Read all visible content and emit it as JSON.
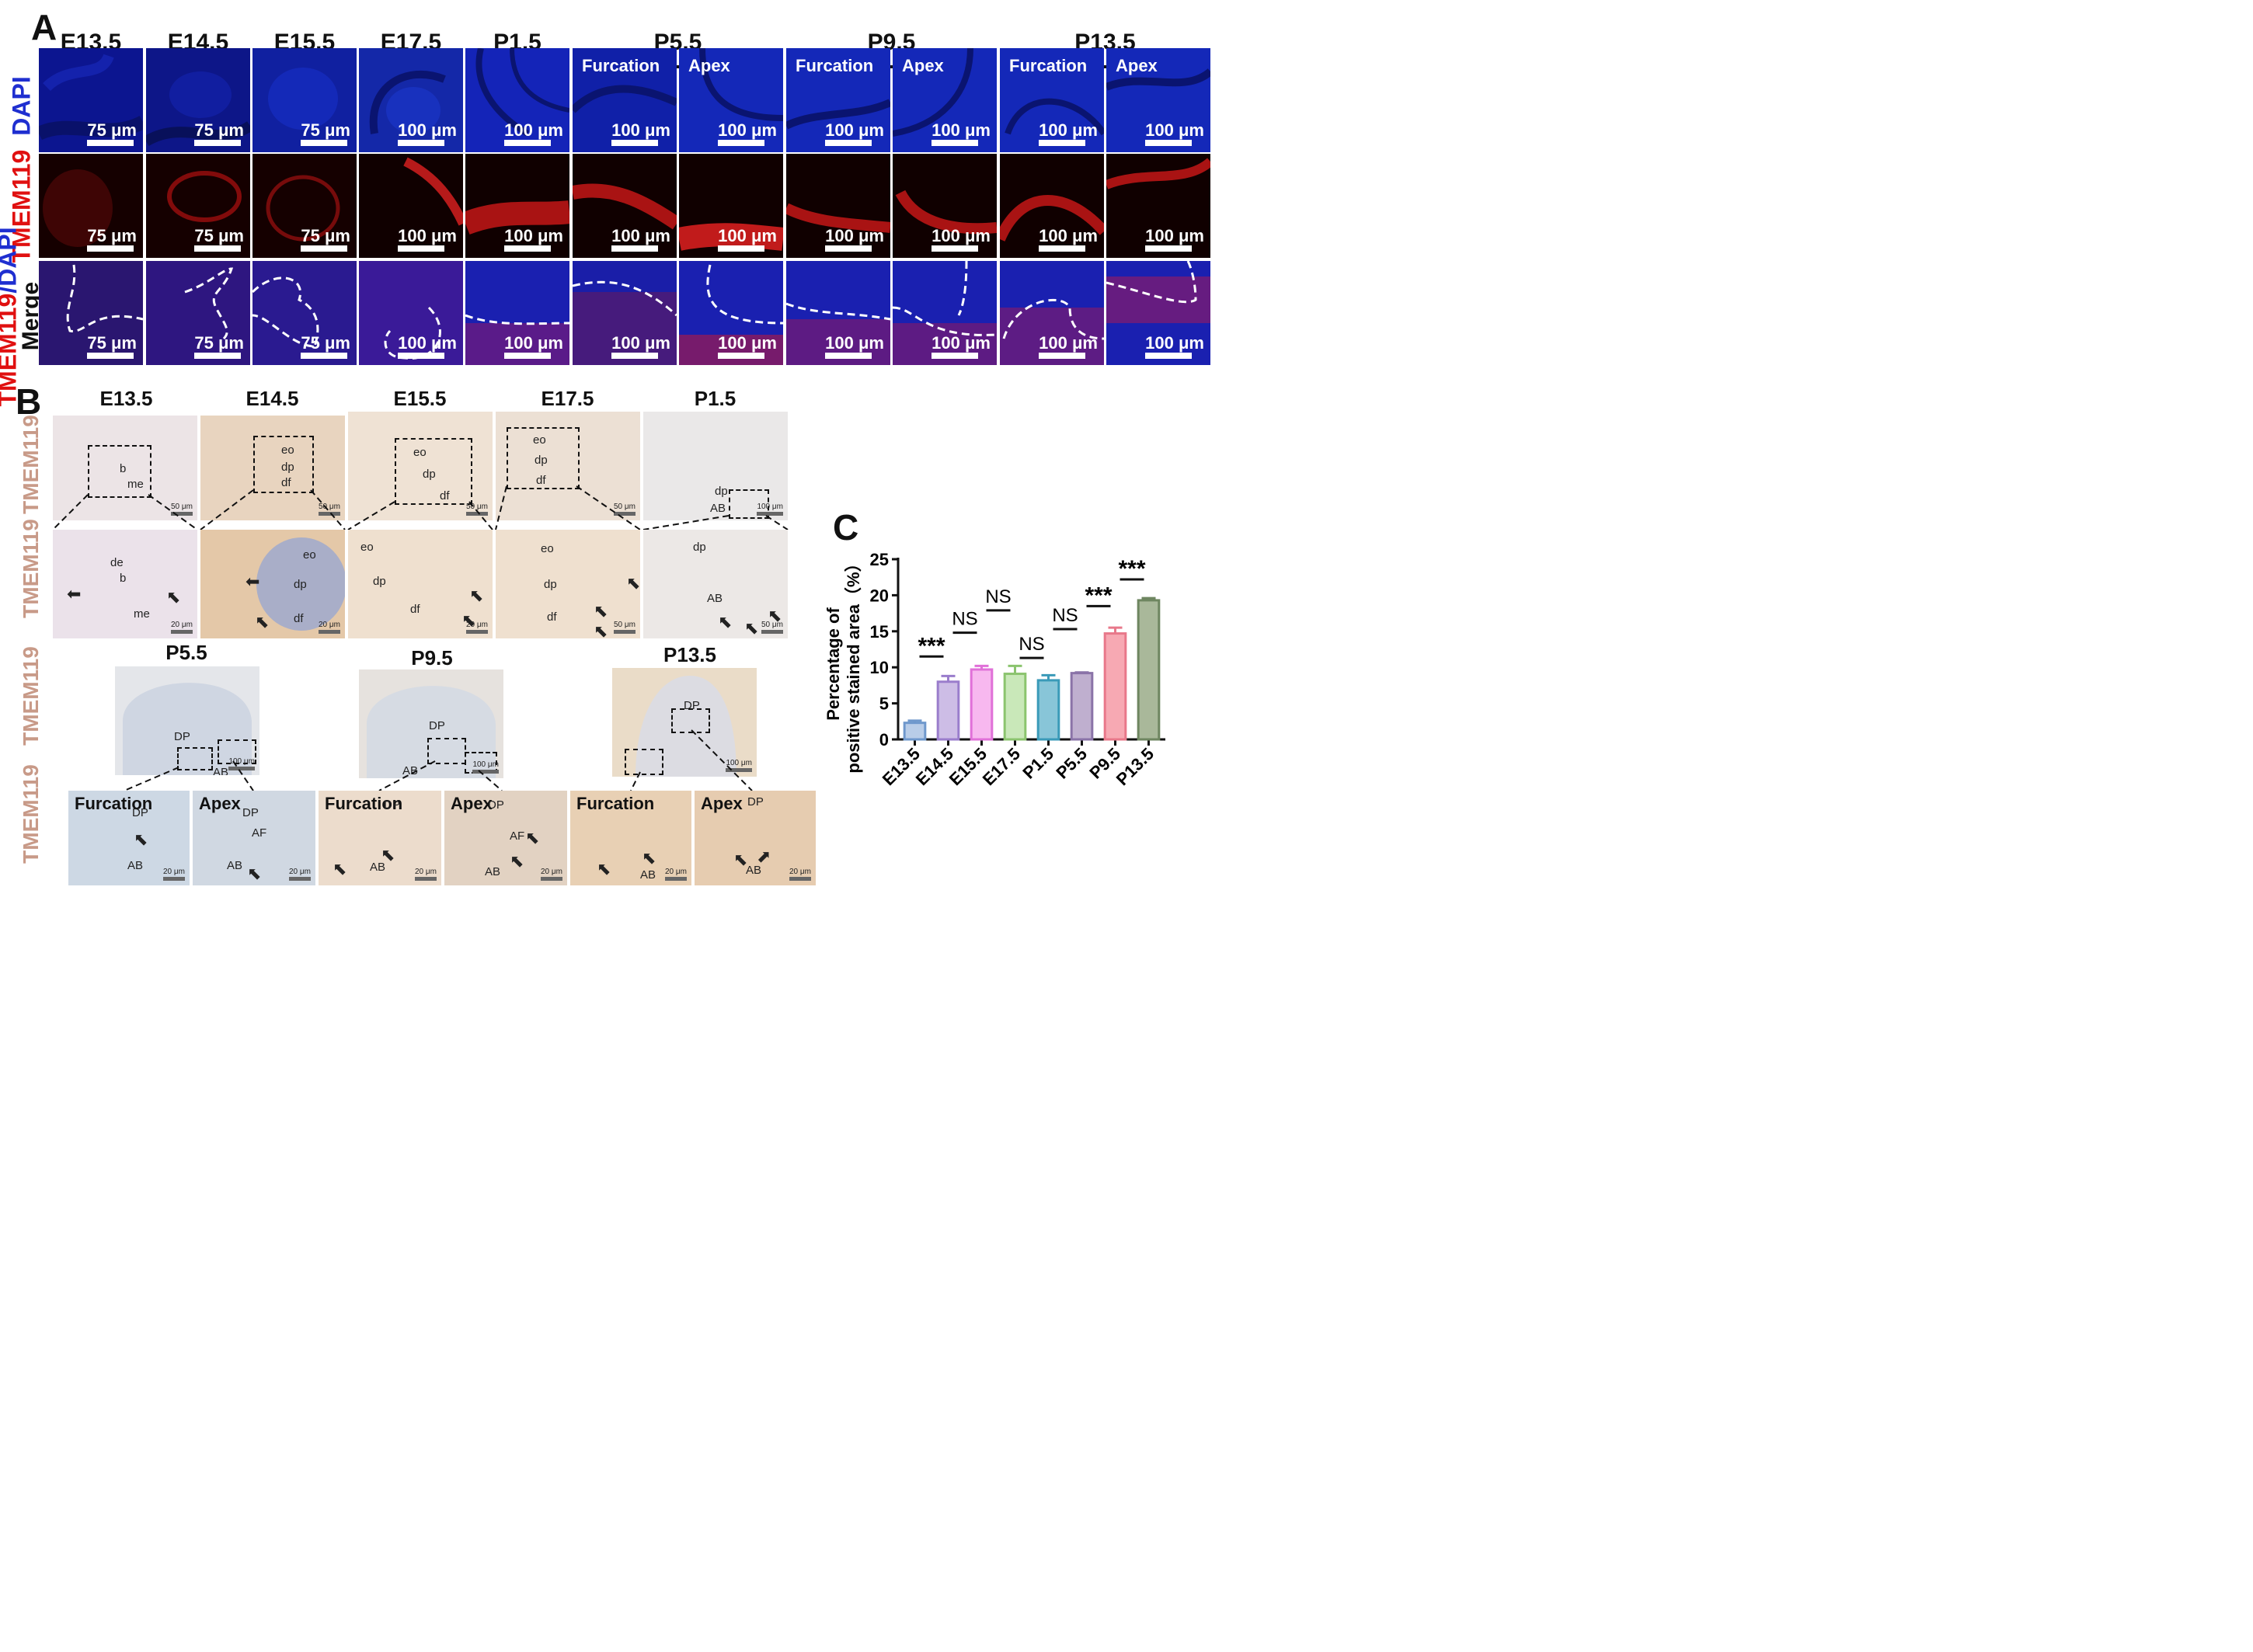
{
  "panel_a": {
    "label": "A",
    "stages": [
      "E13.5",
      "E14.5",
      "E15.5",
      "E17.5",
      "P1.5",
      "P5.5",
      "P9.5",
      "P13.5"
    ],
    "sub_labels": [
      "Furcation",
      "Apex"
    ],
    "rows": {
      "dapi": "DAPI",
      "tmem": "TMEM119",
      "merge_a": "TMEM119",
      "merge_b": "/DAPI",
      "merge_c": "Merge"
    },
    "scalebars": [
      "75 μm",
      "75 μm",
      "75 μm",
      "100 μm",
      "100 μm",
      "100 μm",
      "100 μm",
      "100 μm",
      "100 μm",
      "100 μm",
      "100 μm"
    ]
  },
  "panel_b": {
    "label": "B",
    "stages_top": [
      "E13.5",
      "E14.5",
      "E15.5",
      "E17.5",
      "P1.5"
    ],
    "stages_bottom": [
      "P5.5",
      "P9.5",
      "P13.5"
    ],
    "row_label": "TMEM119",
    "sub_labels": [
      "Furcation",
      "Apex"
    ],
    "annotations": {
      "b": "b",
      "me": "me",
      "de": "de",
      "eo": "eo",
      "dp": "dp",
      "df": "df",
      "AB": "AB",
      "DP": "DP",
      "AF": "AF"
    },
    "scalebars": [
      "50 μm",
      "50 μm",
      "50 μm",
      "50 μm",
      "100 μm",
      "20 μm",
      "20 μm",
      "20 μm",
      "50 μm",
      "50 μm",
      "100 μm",
      "100 μm",
      "100 μm",
      "20 μm",
      "20 μm",
      "20 μm",
      "20 μm",
      "20 μm",
      "20 μm"
    ]
  },
  "panel_c": {
    "label": "C"
  },
  "chart_data": {
    "type": "bar",
    "title": "",
    "xlabel": "",
    "ylabel": "Percentage of positive stained area（%）",
    "ylabel_line1": "Percentage of",
    "ylabel_line2": "positive stained area（%）",
    "ylim": [
      0,
      25
    ],
    "yticks": [
      0,
      5,
      10,
      15,
      20,
      25
    ],
    "categories": [
      "E13.5",
      "E14.5",
      "E15.5",
      "E17.5",
      "P1.5",
      "P5.5",
      "P9.5",
      "P13.5"
    ],
    "values": [
      2.3,
      8.0,
      9.7,
      9.1,
      8.2,
      9.2,
      14.7,
      19.3
    ],
    "errors": [
      0.3,
      0.8,
      0.5,
      1.1,
      0.7,
      0.1,
      0.8,
      0.3
    ],
    "bar_fill": [
      "#b9cde8",
      "#cdbde6",
      "#f7b8ef",
      "#c9e8b9",
      "#88c5d8",
      "#bfafcf",
      "#f7a9b3",
      "#a9b89a"
    ],
    "bar_edge": [
      "#6f98cc",
      "#9a7dcc",
      "#e070d8",
      "#8bc46e",
      "#3a9ab8",
      "#8a73a8",
      "#e8788a",
      "#6e8660"
    ],
    "significance": [
      {
        "from": 0,
        "to": 1,
        "label": "***",
        "y": 11.5
      },
      {
        "from": 1,
        "to": 2,
        "label": "NS",
        "y": 14.8
      },
      {
        "from": 2,
        "to": 3,
        "label": "NS",
        "y": 17.9
      },
      {
        "from": 3,
        "to": 4,
        "label": "NS",
        "y": 11.3
      },
      {
        "from": 4,
        "to": 5,
        "label": "NS",
        "y": 15.3
      },
      {
        "from": 5,
        "to": 6,
        "label": "***",
        "y": 18.5
      },
      {
        "from": 6,
        "to": 7,
        "label": "***",
        "y": 22.2
      }
    ],
    "grid": false
  }
}
